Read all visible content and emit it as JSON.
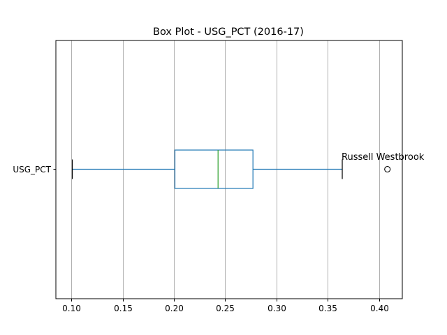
{
  "chart_data": {
    "type": "boxplot",
    "orientation": "horizontal",
    "title": "Box Plot - USG_PCT (2016-17)",
    "xlabel": "",
    "ylabel": "",
    "category": "USG_PCT",
    "xlim": [
      0.085,
      0.4225
    ],
    "xticks": [
      0.1,
      0.15,
      0.2,
      0.25,
      0.3,
      0.35,
      0.4
    ],
    "xtick_labels": [
      "0.10",
      "0.15",
      "0.20",
      "0.25",
      "0.30",
      "0.35",
      "0.40"
    ],
    "grid": true,
    "box": {
      "whisker_low": 0.101,
      "q1": 0.201,
      "median": 0.243,
      "q3": 0.277,
      "whisker_high": 0.364
    },
    "outliers": [
      0.408
    ],
    "annotation": {
      "text": "Russell Westbrook",
      "x": 0.364
    },
    "colors": {
      "box": "#1f77b4",
      "median": "#2ca02c",
      "grid": "#b0b0b0",
      "frame": "#000000"
    }
  }
}
